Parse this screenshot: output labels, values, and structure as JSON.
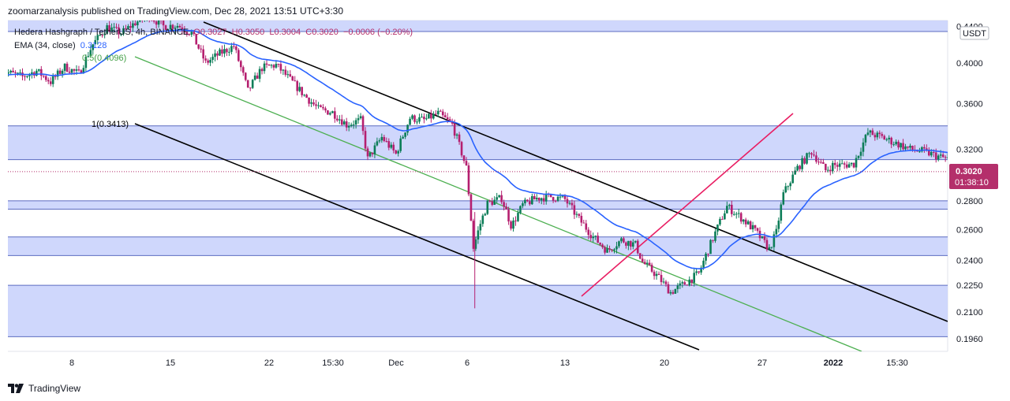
{
  "header": {
    "publisher_line": "zoomarzanalysis published on TradingView.com, Dec 28, 2021 13:51 UTC+3:30"
  },
  "legend": {
    "symbol": "Hedera Hashgraph / TetherUS, 4h, BINANCE",
    "open_label": "O",
    "open": "0.3027",
    "high_label": "H",
    "high": "0.3050",
    "low_label": "L",
    "low": "0.3004",
    "close_label": "C",
    "close": "0.3020",
    "change": "−0.0006 (−0.20%)",
    "ema_label": "EMA (34, close)",
    "ema_value": "0.3128"
  },
  "price_axis": {
    "currency": "USDT",
    "ticks": [
      "0.4400",
      "0.4000",
      "0.3600",
      "0.3200",
      "0.2800",
      "0.2600",
      "0.2400",
      "0.2250",
      "0.2100",
      "0.1960"
    ],
    "last_price": "0.3020",
    "countdown": "01:38:10"
  },
  "time_axis": {
    "ticks": [
      "8",
      "15",
      "22",
      "15:30",
      "Dec",
      "6",
      "13",
      "20",
      "27",
      "2022",
      "15:30"
    ],
    "bold_ticks": [
      "2022"
    ]
  },
  "fib_labels": [
    "1(0.3413)",
    "0.5(0.4096)"
  ],
  "branding": {
    "name": "TradingView"
  },
  "colors": {
    "zone_fill": "#c7d0fb",
    "zone_line": "#5c6bc0",
    "ema": "#2962ff",
    "up_candle": "#0c7d58",
    "down_candle": "#b51f6f",
    "channel": "#000000",
    "midline": "#4caf50",
    "trendline": "#e91e63",
    "price_label": "#b42f6b"
  },
  "chart_data": {
    "type": "candlestick",
    "symbol": "HBAR/USDT",
    "timeframe": "4h",
    "log_scale": true,
    "y_range": [
      0.19,
      0.445
    ],
    "x_range_days": [
      "2021-11-03",
      "2022-01-03"
    ],
    "ema_period": 34,
    "support_resistance_zones": [
      {
        "low": 0.434,
        "high": 0.45
      },
      {
        "low": 0.3115,
        "high": 0.34
      },
      {
        "low": 0.274,
        "high": 0.28
      },
      {
        "low": 0.243,
        "high": 0.255
      },
      {
        "low": 0.197,
        "high": 0.225
      }
    ],
    "last_price": 0.302,
    "ohlc_last": {
      "open": 0.3027,
      "high": 0.305,
      "low": 0.3004,
      "close": 0.302
    }
  }
}
